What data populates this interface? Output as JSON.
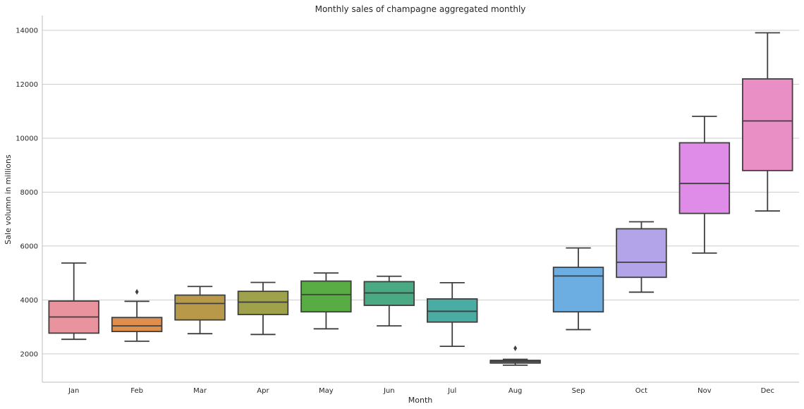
{
  "chart_data": {
    "type": "box",
    "title": "Monthly sales of champagne aggregated monthly",
    "xlabel": "Month",
    "ylabel": "Sale volumn in millions",
    "ylim": [
      950,
      14550
    ],
    "yticks": [
      2000,
      4000,
      6000,
      8000,
      10000,
      12000,
      14000
    ],
    "grid": "horizontal",
    "categories": [
      "Jan",
      "Feb",
      "Mar",
      "Apr",
      "May",
      "Jun",
      "Jul",
      "Aug",
      "Sep",
      "Oct",
      "Nov",
      "Dec"
    ],
    "boxes": [
      {
        "month": "Jan",
        "whisker_low": 2540,
        "q1": 2770,
        "median": 3370,
        "q3": 3960,
        "whisker_high": 5370,
        "outliers": [],
        "color": "#e8939d"
      },
      {
        "month": "Feb",
        "whisker_low": 2470,
        "q1": 2830,
        "median": 3040,
        "q3": 3350,
        "whisker_high": 3950,
        "outliers": [
          4300
        ],
        "color": "#e08e4b"
      },
      {
        "month": "Mar",
        "whisker_low": 2750,
        "q1": 3260,
        "median": 3870,
        "q3": 4180,
        "whisker_high": 4500,
        "outliers": [],
        "color": "#b8994a"
      },
      {
        "month": "Apr",
        "whisker_low": 2720,
        "q1": 3460,
        "median": 3920,
        "q3": 4320,
        "whisker_high": 4650,
        "outliers": [],
        "color": "#9fa24a"
      },
      {
        "month": "May",
        "whisker_low": 2930,
        "q1": 3560,
        "median": 4200,
        "q3": 4700,
        "whisker_high": 5000,
        "outliers": [],
        "color": "#59ab43"
      },
      {
        "month": "Jun",
        "whisker_low": 3040,
        "q1": 3800,
        "median": 4260,
        "q3": 4680,
        "whisker_high": 4880,
        "outliers": [],
        "color": "#4aaa84"
      },
      {
        "month": "Jul",
        "whisker_low": 2280,
        "q1": 3180,
        "median": 3580,
        "q3": 4040,
        "whisker_high": 4640,
        "outliers": [],
        "color": "#4aaca3"
      },
      {
        "month": "Aug",
        "whisker_low": 1580,
        "q1": 1660,
        "median": 1720,
        "q3": 1760,
        "whisker_high": 1800,
        "outliers": [
          2210
        ],
        "color": "#4aa6c4"
      },
      {
        "month": "Sep",
        "whisker_low": 2900,
        "q1": 3560,
        "median": 4890,
        "q3": 5210,
        "whisker_high": 5930,
        "outliers": [],
        "color": "#6caee2"
      },
      {
        "month": "Oct",
        "whisker_low": 4290,
        "q1": 4840,
        "median": 5400,
        "q3": 6640,
        "whisker_high": 6900,
        "outliers": [],
        "color": "#b3a4ea"
      },
      {
        "month": "Nov",
        "whisker_low": 5740,
        "q1": 7210,
        "median": 8320,
        "q3": 9830,
        "whisker_high": 10810,
        "outliers": [],
        "color": "#de8ce8"
      },
      {
        "month": "Dec",
        "whisker_low": 7300,
        "q1": 8800,
        "median": 10640,
        "q3": 12200,
        "whisker_high": 13910,
        "outliers": [],
        "color": "#e98fc6"
      }
    ]
  }
}
